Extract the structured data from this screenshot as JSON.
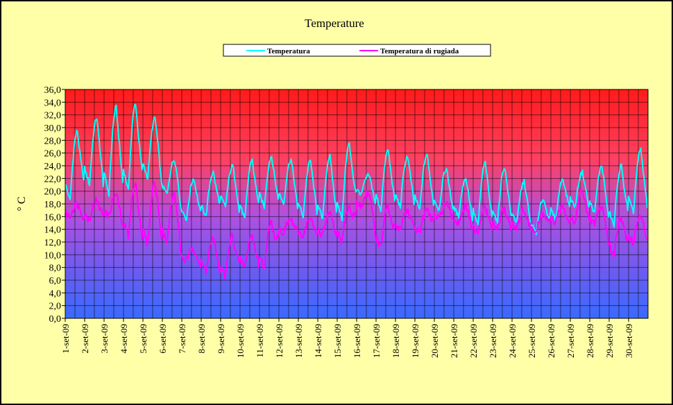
{
  "chart_data": {
    "type": "line",
    "title": "Temperature",
    "ylabel": "° C",
    "ylim": [
      0,
      36
    ],
    "ytick_step": 2,
    "ytick_labels": [
      "0,0",
      "2,0",
      "4,0",
      "6,0",
      "8,0",
      "10,0",
      "12,0",
      "14,0",
      "16,0",
      "18,0",
      "20,0",
      "22,0",
      "24,0",
      "26,0",
      "28,0",
      "30,0",
      "32,0",
      "34,0",
      "36,0"
    ],
    "categories": [
      "1-set-09",
      "2-set-09",
      "3-set-09",
      "4-set-09",
      "5-set-09",
      "6-set-09",
      "7-set-09",
      "8-set-09",
      "9-set-09",
      "10-set-09",
      "11-set-09",
      "12-set-09",
      "13-set-09",
      "14-set-09",
      "15-set-09",
      "16-set-09",
      "17-set-09",
      "18-set-09",
      "19-set-09",
      "20-set-09",
      "21-set-09",
      "22-set-09",
      "23-set-09",
      "24-set-09",
      "25-set-09",
      "26-set-09",
      "27-set-09",
      "28-set-09",
      "29-set-09",
      "30-set-09"
    ],
    "grid": true,
    "legend_position": "top",
    "series": [
      {
        "name": "Temperatura",
        "color": "#00ffff",
        "daily_min": [
          18.5,
          21.0,
          19.5,
          20.0,
          22.0,
          19.5,
          15.5,
          16.0,
          17.5,
          15.5,
          17.5,
          18.0,
          16.0,
          15.5,
          15.5,
          19.5,
          17.0,
          17.5,
          17.0,
          17.0,
          16.0,
          14.5,
          15.0,
          15.0,
          13.5,
          15.5,
          17.5,
          16.5,
          14.5,
          16.5
        ],
        "daily_max": [
          29.5,
          31.5,
          33.2,
          33.8,
          31.5,
          25.0,
          22.0,
          23.0,
          24.0,
          25.0,
          25.5,
          25.0,
          24.8,
          25.5,
          27.5,
          22.5,
          26.5,
          25.5,
          25.8,
          23.5,
          22.0,
          24.5,
          23.8,
          21.5,
          18.8,
          22.0,
          23.0,
          24.0,
          24.0,
          26.5
        ]
      },
      {
        "name": "Temperatura di rugiada",
        "color": "#ff00ff",
        "daily_min": [
          16.0,
          15.5,
          16.0,
          13.0,
          11.5,
          12.0,
          9.0,
          7.5,
          6.5,
          8.0,
          8.0,
          13.5,
          13.0,
          13.0,
          12.0,
          17.5,
          11.0,
          14.0,
          13.5,
          15.5,
          15.0,
          13.0,
          14.0,
          14.0,
          13.5,
          15.0,
          15.0,
          15.0,
          10.0,
          12.0
        ],
        "daily_max": [
          18.0,
          18.5,
          19.5,
          21.0,
          21.5,
          19.5,
          11.0,
          12.5,
          13.0,
          13.0,
          15.0,
          15.5,
          15.5,
          16.5,
          17.5,
          19.8,
          17.5,
          17.0,
          17.0,
          18.0,
          17.5,
          17.5,
          17.0,
          17.0,
          16.5,
          17.5,
          20.0,
          17.5,
          16.0,
          16.0
        ]
      }
    ]
  }
}
